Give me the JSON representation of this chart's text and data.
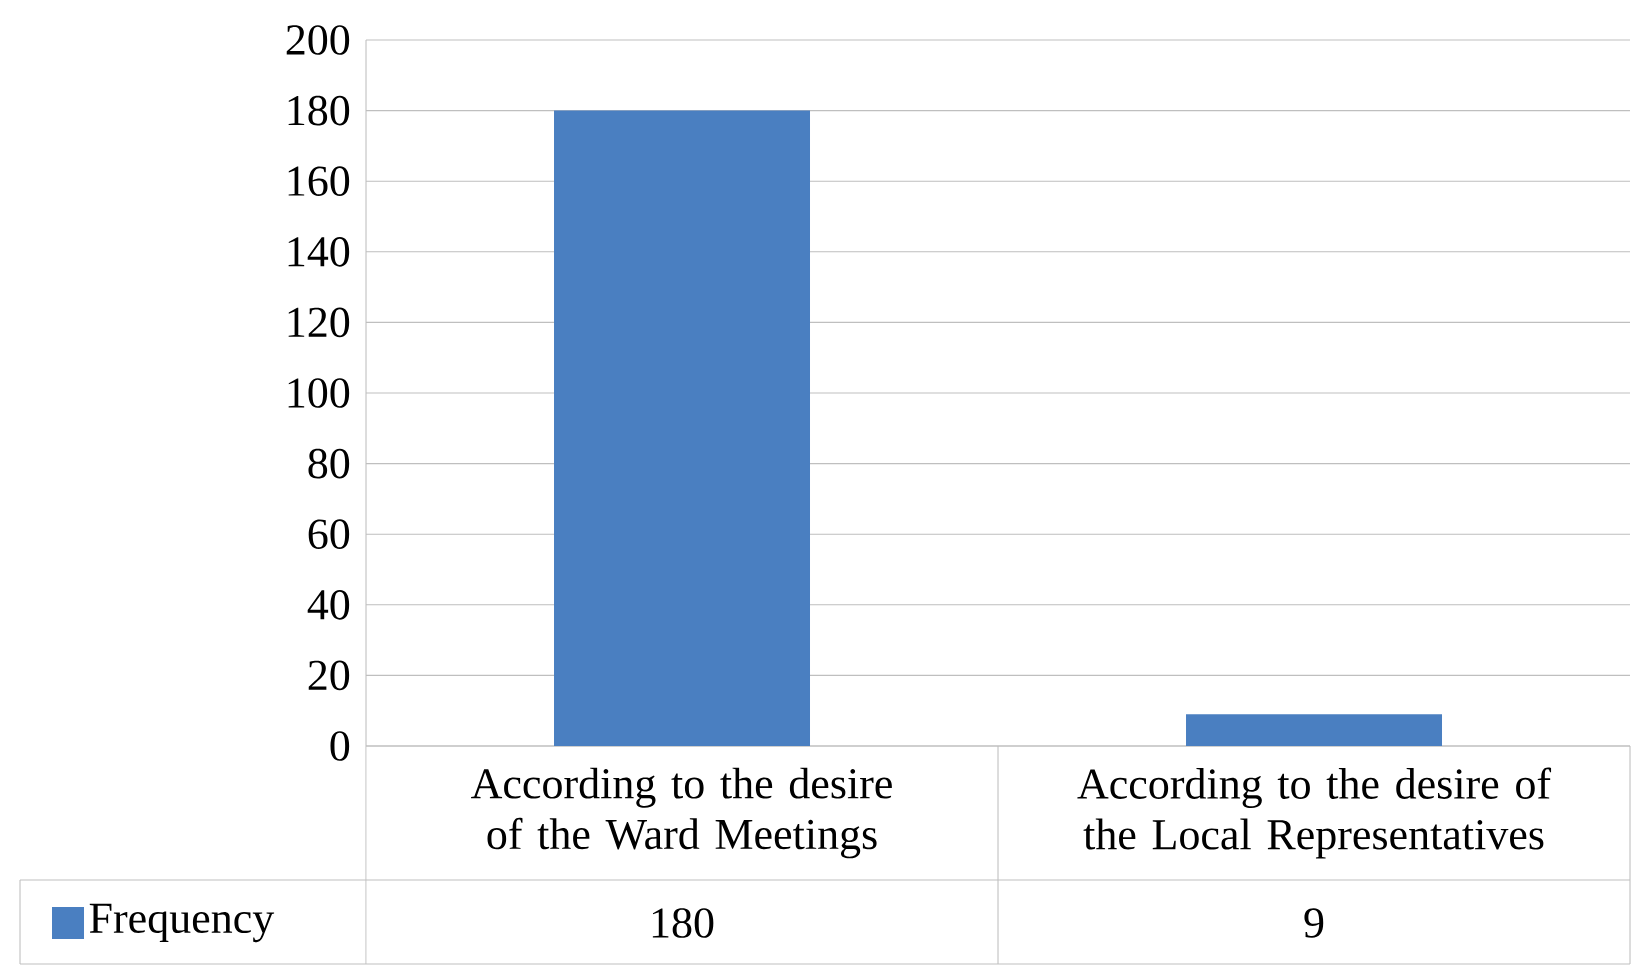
{
  "chart_data": {
    "type": "bar",
    "categories": [
      "According to the desire of the Ward Meetings",
      "According to the desire of the Local Representatives"
    ],
    "series": [
      {
        "name": "Frequency",
        "color": "#4a7fc1",
        "values": [
          180,
          9
        ]
      }
    ],
    "ylim": [
      0,
      200
    ],
    "yticks": [
      0,
      20,
      40,
      60,
      80,
      100,
      120,
      140,
      160,
      180,
      200
    ],
    "grid": "y",
    "legend": "bottom",
    "data_labels": true
  }
}
